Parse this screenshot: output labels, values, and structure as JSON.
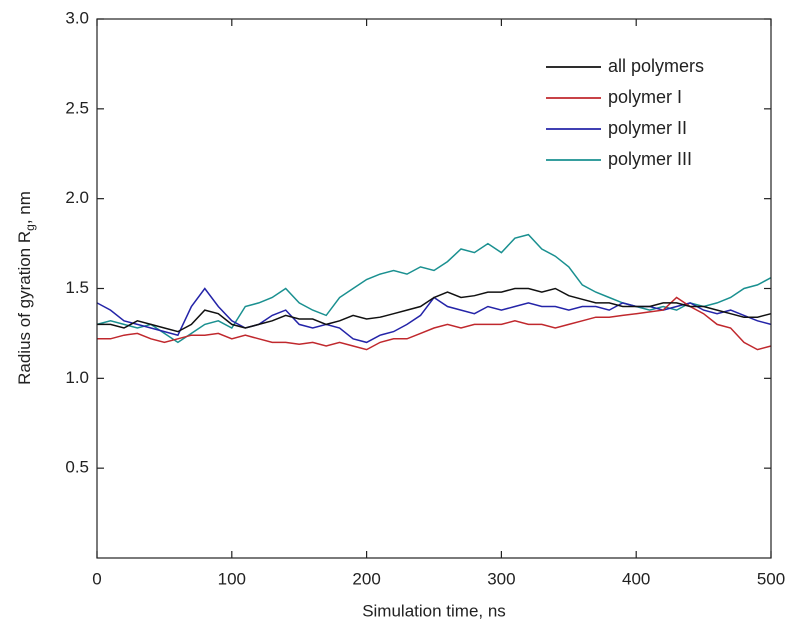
{
  "chart_data": {
    "type": "line",
    "x_label": "Simulation time, ns",
    "y_label": "Radius of gyration R",
    "y_label_sub": "g",
    "y_label_end": ", nm",
    "x": [
      0,
      10,
      20,
      30,
      40,
      50,
      60,
      70,
      80,
      90,
      100,
      110,
      120,
      130,
      140,
      150,
      160,
      170,
      180,
      190,
      200,
      210,
      220,
      230,
      240,
      250,
      260,
      270,
      280,
      290,
      300,
      310,
      320,
      330,
      340,
      350,
      360,
      370,
      380,
      390,
      400,
      410,
      420,
      430,
      440,
      450,
      460,
      470,
      480,
      490,
      500
    ],
    "xlim": [
      0,
      500
    ],
    "xticks": [
      0,
      100,
      200,
      300,
      400,
      500
    ],
    "ylim": [
      0,
      3
    ],
    "yticks": [
      0.5,
      {
        "value": 1,
        "label": "1.0"
      },
      1.5,
      {
        "value": 2,
        "label": "2.0"
      },
      2.5,
      {
        "value": 3,
        "label": "3.0"
      }
    ],
    "legend": "upper right",
    "series": [
      {
        "name": "all polymers",
        "color": "#111111",
        "values": [
          1.3,
          1.3,
          1.28,
          1.32,
          1.3,
          1.28,
          1.26,
          1.3,
          1.38,
          1.36,
          1.3,
          1.28,
          1.3,
          1.32,
          1.35,
          1.33,
          1.33,
          1.3,
          1.32,
          1.35,
          1.33,
          1.34,
          1.36,
          1.38,
          1.4,
          1.45,
          1.48,
          1.45,
          1.46,
          1.48,
          1.48,
          1.5,
          1.5,
          1.48,
          1.5,
          1.46,
          1.44,
          1.42,
          1.42,
          1.4,
          1.4,
          1.4,
          1.42,
          1.42,
          1.4,
          1.4,
          1.38,
          1.36,
          1.34,
          1.34,
          1.36
        ]
      },
      {
        "name": "polymer I",
        "color": "#c0282d",
        "values": [
          1.22,
          1.22,
          1.24,
          1.25,
          1.22,
          1.2,
          1.22,
          1.24,
          1.24,
          1.25,
          1.22,
          1.24,
          1.22,
          1.2,
          1.2,
          1.19,
          1.2,
          1.18,
          1.2,
          1.18,
          1.16,
          1.2,
          1.22,
          1.22,
          1.25,
          1.28,
          1.3,
          1.28,
          1.3,
          1.3,
          1.3,
          1.32,
          1.3,
          1.3,
          1.28,
          1.3,
          1.32,
          1.34,
          1.34,
          1.35,
          1.36,
          1.37,
          1.38,
          1.45,
          1.4,
          1.36,
          1.3,
          1.28,
          1.2,
          1.16,
          1.18
        ]
      },
      {
        "name": "polymer II",
        "color": "#2424a8",
        "values": [
          1.42,
          1.38,
          1.32,
          1.3,
          1.28,
          1.26,
          1.24,
          1.4,
          1.5,
          1.4,
          1.32,
          1.28,
          1.3,
          1.35,
          1.38,
          1.3,
          1.28,
          1.3,
          1.28,
          1.22,
          1.2,
          1.24,
          1.26,
          1.3,
          1.35,
          1.45,
          1.4,
          1.38,
          1.36,
          1.4,
          1.38,
          1.4,
          1.42,
          1.4,
          1.4,
          1.38,
          1.4,
          1.4,
          1.38,
          1.42,
          1.4,
          1.4,
          1.38,
          1.4,
          1.42,
          1.38,
          1.36,
          1.38,
          1.35,
          1.32,
          1.3
        ]
      },
      {
        "name": "polymer III",
        "color": "#1a9090",
        "values": [
          1.3,
          1.32,
          1.3,
          1.28,
          1.3,
          1.25,
          1.2,
          1.25,
          1.3,
          1.32,
          1.28,
          1.4,
          1.42,
          1.45,
          1.5,
          1.42,
          1.38,
          1.35,
          1.45,
          1.5,
          1.55,
          1.58,
          1.6,
          1.58,
          1.62,
          1.6,
          1.65,
          1.72,
          1.7,
          1.75,
          1.7,
          1.78,
          1.8,
          1.72,
          1.68,
          1.62,
          1.52,
          1.48,
          1.45,
          1.42,
          1.4,
          1.38,
          1.4,
          1.38,
          1.42,
          1.4,
          1.42,
          1.45,
          1.5,
          1.52,
          1.56
        ]
      }
    ]
  }
}
